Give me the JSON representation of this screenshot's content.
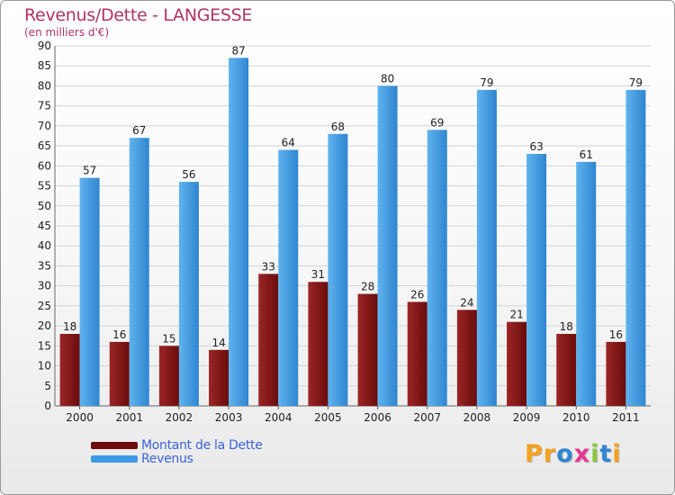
{
  "header": {
    "title": "Revenus/Dette - LANGESSE",
    "subtitle": "(en milliers d'€)"
  },
  "colors": {
    "debt": "#6a0c0c",
    "debt_light": "#9b2525",
    "revenue": "#2f86d0",
    "revenue_light": "#5fb3ee",
    "axis_text": "#222222",
    "grid": "#d4d4d4"
  },
  "legend": {
    "items": [
      {
        "label": "Montant de la Dette",
        "color": "#6a0c0c"
      },
      {
        "label": "Revenus",
        "color": "#3d9be4"
      }
    ]
  },
  "logo": {
    "letters": [
      {
        "char": "P",
        "color": "#f4a21e"
      },
      {
        "char": "r",
        "color": "#f4a21e"
      },
      {
        "char": "o",
        "color": "#2f86d0"
      },
      {
        "char": "x",
        "color": "#e5388f"
      },
      {
        "char": "i",
        "color": "#8cc63f"
      },
      {
        "char": "t",
        "color": "#2f86d0"
      },
      {
        "char": "i",
        "color": "#f4a21e"
      }
    ]
  },
  "chart_data": {
    "type": "bar",
    "title": "Revenus/Dette - LANGESSE",
    "subtitle": "(en milliers d'€)",
    "categories": [
      "2000",
      "2001",
      "2002",
      "2003",
      "2004",
      "2005",
      "2006",
      "2007",
      "2008",
      "2009",
      "2010",
      "2011"
    ],
    "series": [
      {
        "name": "Montant de la Dette",
        "values": [
          18,
          16,
          15,
          14,
          33,
          31,
          28,
          26,
          24,
          21,
          18,
          16
        ]
      },
      {
        "name": "Revenus",
        "values": [
          57,
          67,
          56,
          87,
          64,
          68,
          80,
          69,
          79,
          63,
          61,
          79
        ]
      }
    ],
    "yticks": [
      "0",
      "5",
      "10",
      "15",
      "20",
      "25",
      "30",
      "35",
      "40",
      "45",
      "50",
      "55",
      "60",
      "65",
      "70",
      "75",
      "80",
      "85",
      "90"
    ],
    "ylim": [
      0,
      90
    ],
    "grid": true,
    "legend_position": "bottom-left"
  }
}
